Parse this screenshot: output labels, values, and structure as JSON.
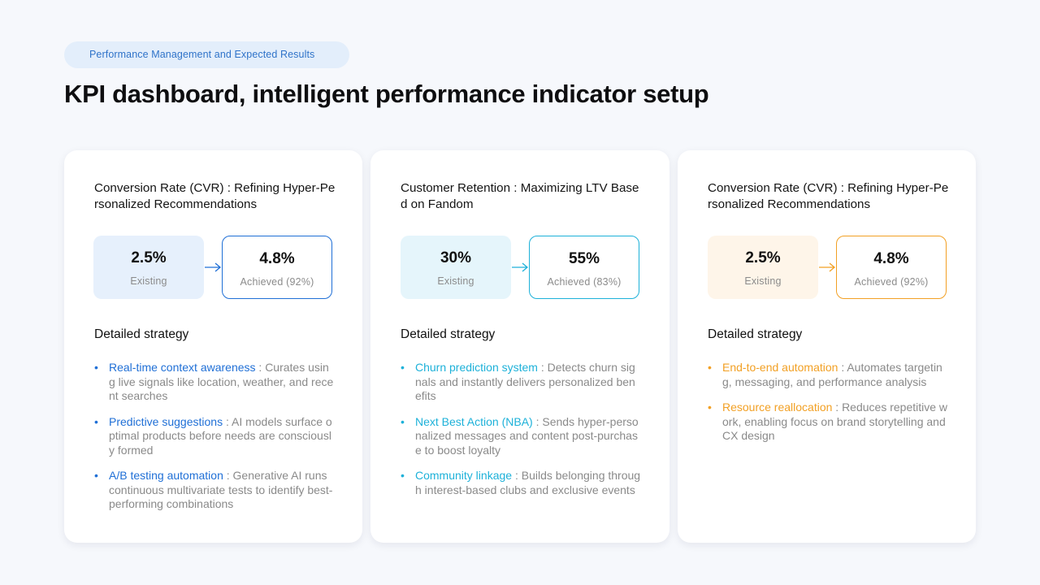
{
  "header": {
    "tag": "Performance Management and Expected Results",
    "title": "KPI dashboard, intelligent performance indicator setup"
  },
  "colors": {
    "blue": "#1f6fd6",
    "cyan": "#1db1d9",
    "orange": "#f2a024"
  },
  "cards": [
    {
      "title": "Conversion Rate (CVR) : Refining Hyper-Personalized Recommendations",
      "existing_value": "2.5%",
      "existing_label": "Existing",
      "achieved_value": "4.8%",
      "achieved_label": "Achieved (92%)",
      "strategy_label": "Detailed strategy",
      "strategies": [
        {
          "name": "Real-time context awareness",
          "desc": " : Curates using live signals like location, weather, and recent searches"
        },
        {
          "name": "Predictive suggestions",
          "desc": " : AI models surface optimal products before needs are consciously formed"
        },
        {
          "name": "A/B testing automation",
          "desc": " : Generative AI runs continuous multivariate tests to identify best-performing combinations"
        }
      ]
    },
    {
      "title": "Customer Retention : Maximizing LTV Based on Fandom",
      "existing_value": "30%",
      "existing_label": "Existing",
      "achieved_value": "55%",
      "achieved_label": "Achieved (83%)",
      "strategy_label": "Detailed strategy",
      "strategies": [
        {
          "name": "Churn prediction system",
          "desc": " : Detects churn signals and instantly delivers personalized benefits"
        },
        {
          "name": "Next Best Action (NBA)",
          "desc": " : Sends hyper-personalized messages and content post-purchase to boost loyalty"
        },
        {
          "name": "Community linkage",
          "desc": " : Builds belonging through interest-based clubs and exclusive events"
        }
      ]
    },
    {
      "title": "Conversion Rate (CVR) : Refining Hyper-Personalized Recommendations",
      "existing_value": "2.5%",
      "existing_label": "Existing",
      "achieved_value": "4.8%",
      "achieved_label": "Achieved (92%)",
      "strategy_label": "Detailed strategy",
      "strategies": [
        {
          "name": "End-to-end automation",
          "desc": " : Automates targeting, messaging, and performance analysis"
        },
        {
          "name": "Resource reallocation",
          "desc": " : Reduces repetitive work, enabling focus on brand storytelling and CX design"
        }
      ]
    }
  ]
}
